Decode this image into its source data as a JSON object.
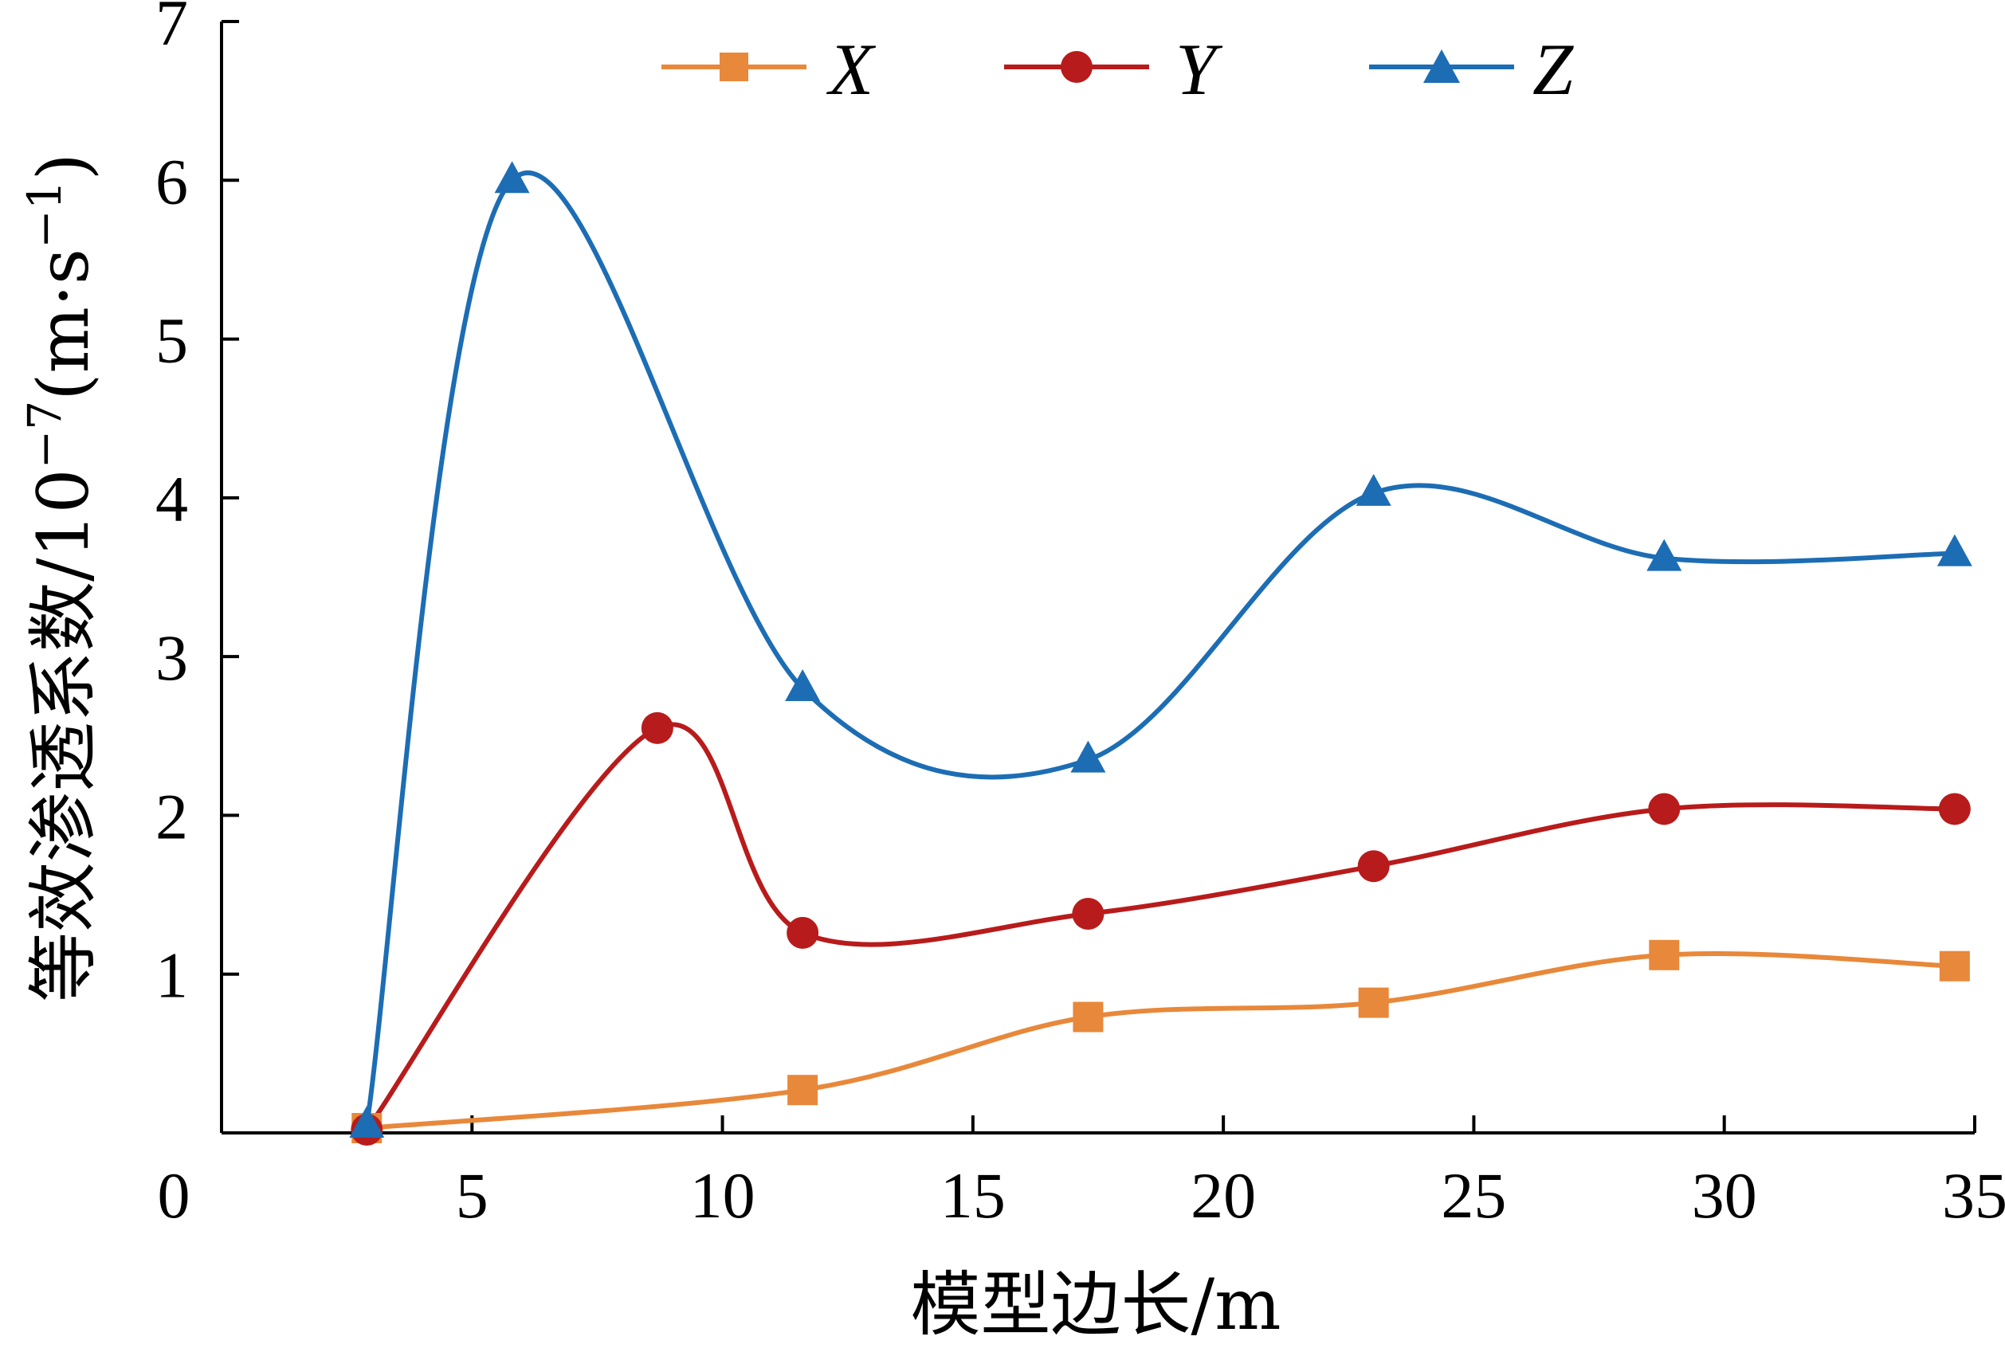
{
  "chart_data": {
    "type": "line",
    "xlabel": "模型边长/m",
    "ylabel_main": "等效渗透系数/10",
    "ylabel_exp": "−7",
    "ylabel_unit_open": "(m·s",
    "ylabel_unit_exp": "−1",
    "ylabel_unit_close": ")",
    "xlim": [
      0,
      35
    ],
    "ylim": [
      0,
      7
    ],
    "x_ticks": [
      5,
      10,
      15,
      20,
      25,
      30,
      35
    ],
    "y_ticks": [
      1,
      2,
      3,
      4,
      5,
      6,
      7
    ],
    "origin_label": "0",
    "grid": false,
    "legend_position": "top",
    "series": [
      {
        "name": "X",
        "color": "#E8883A",
        "marker": "square",
        "x": [
          2.9,
          11.6,
          17.3,
          23.0,
          28.8,
          34.6
        ],
        "y": [
          0.03,
          0.27,
          0.73,
          0.82,
          1.12,
          1.05
        ]
      },
      {
        "name": "Y",
        "color": "#B81B1B",
        "marker": "circle",
        "x": [
          2.9,
          8.7,
          11.6,
          17.3,
          23.0,
          28.8,
          34.6
        ],
        "y": [
          0.02,
          2.55,
          1.26,
          1.38,
          1.68,
          2.04,
          2.04
        ]
      },
      {
        "name": "Z",
        "color": "#1C6DB4",
        "marker": "triangle",
        "x": [
          2.9,
          5.8,
          11.6,
          17.3,
          23.0,
          28.8,
          34.6
        ],
        "y": [
          0.05,
          6.0,
          2.8,
          2.35,
          4.03,
          3.62,
          3.65
        ]
      }
    ]
  }
}
